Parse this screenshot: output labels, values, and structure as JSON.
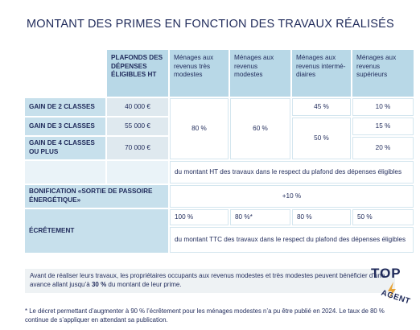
{
  "title": "MONTANT DES PRIMES EN FONCTION DES TRAVAUX RÉALISÉS",
  "table": {
    "headers": [
      "PLAFONDS DES DÉPENSES ÉLIGIBLES HT",
      "Ménages aux revenus très modestes",
      "Ménages aux revenus modestes",
      "Ménages aux revenus intermé-diaires",
      "Ménages aux revenus supérieurs"
    ],
    "rows": [
      {
        "label": "GAIN DE 2 CLASSES",
        "plafond": "40 000 €"
      },
      {
        "label": "GAIN DE 3 CLASSES",
        "plafond": "55 000 €"
      },
      {
        "label": "GAIN DE 4 CLASSES OU PLUS",
        "plafond": "70 000 €"
      }
    ],
    "tres_modestes": "80 %",
    "modestes": "60 %",
    "intermediaires": [
      "45 %",
      "50 %"
    ],
    "superieurs": [
      "10 %",
      "15 %",
      "20 %"
    ],
    "note_ht": "du montant HT des travaux dans le respect du plafond des dépenses éligibles",
    "bonification": {
      "label": "BONIFICATION «SORTIE DE PASSOIRE ÉNERGÉTIQUE»",
      "value": "+10 %"
    },
    "ecretement": {
      "label": "ÉCRÊTEMENT",
      "values": [
        "100 %",
        "80 %*",
        "80 %",
        "50 %"
      ],
      "note": "du montant TTC des travaux dans le respect du plafond des dépenses éligibles"
    }
  },
  "avance": {
    "before": "Avant de réaliser leurs travaux, les propriétaires occupants aux revenus modestes et très modestes peuvent bénéficier d’une avance allant jusqu’à ",
    "bold": "30 %",
    "after": " du montant de leur prime."
  },
  "footnote": "* Le décret permettant d’augmenter à 90 % l’écrêtement pour les ménages modestes n’a pu être publié en 2024. Le taux de 80 % continue de s’appliquer en attendant sa publication.",
  "logo": {
    "top": "TOP",
    "bottom": "AGENT"
  }
}
